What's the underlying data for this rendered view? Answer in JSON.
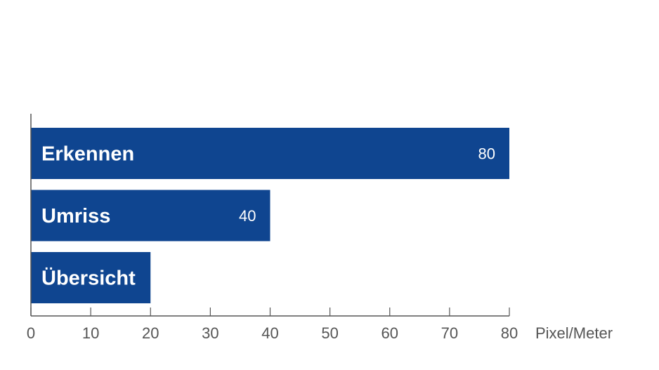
{
  "chart_data": {
    "type": "bar",
    "orientation": "horizontal",
    "categories": [
      "Erkennen",
      "Umriss",
      "Übersicht"
    ],
    "values": [
      80,
      40,
      20
    ],
    "data_labels": [
      "80",
      "40",
      ""
    ],
    "xlabel": "Pixel/Meter",
    "xlim": [
      0,
      80
    ],
    "xticks": [
      0,
      10,
      20,
      30,
      40,
      50,
      60,
      70,
      80
    ],
    "grid": false,
    "legend": "none",
    "colors": {
      "bar": "#0f4590",
      "axis": "#555555",
      "text": "#555555",
      "bar_text": "#ffffff"
    }
  }
}
